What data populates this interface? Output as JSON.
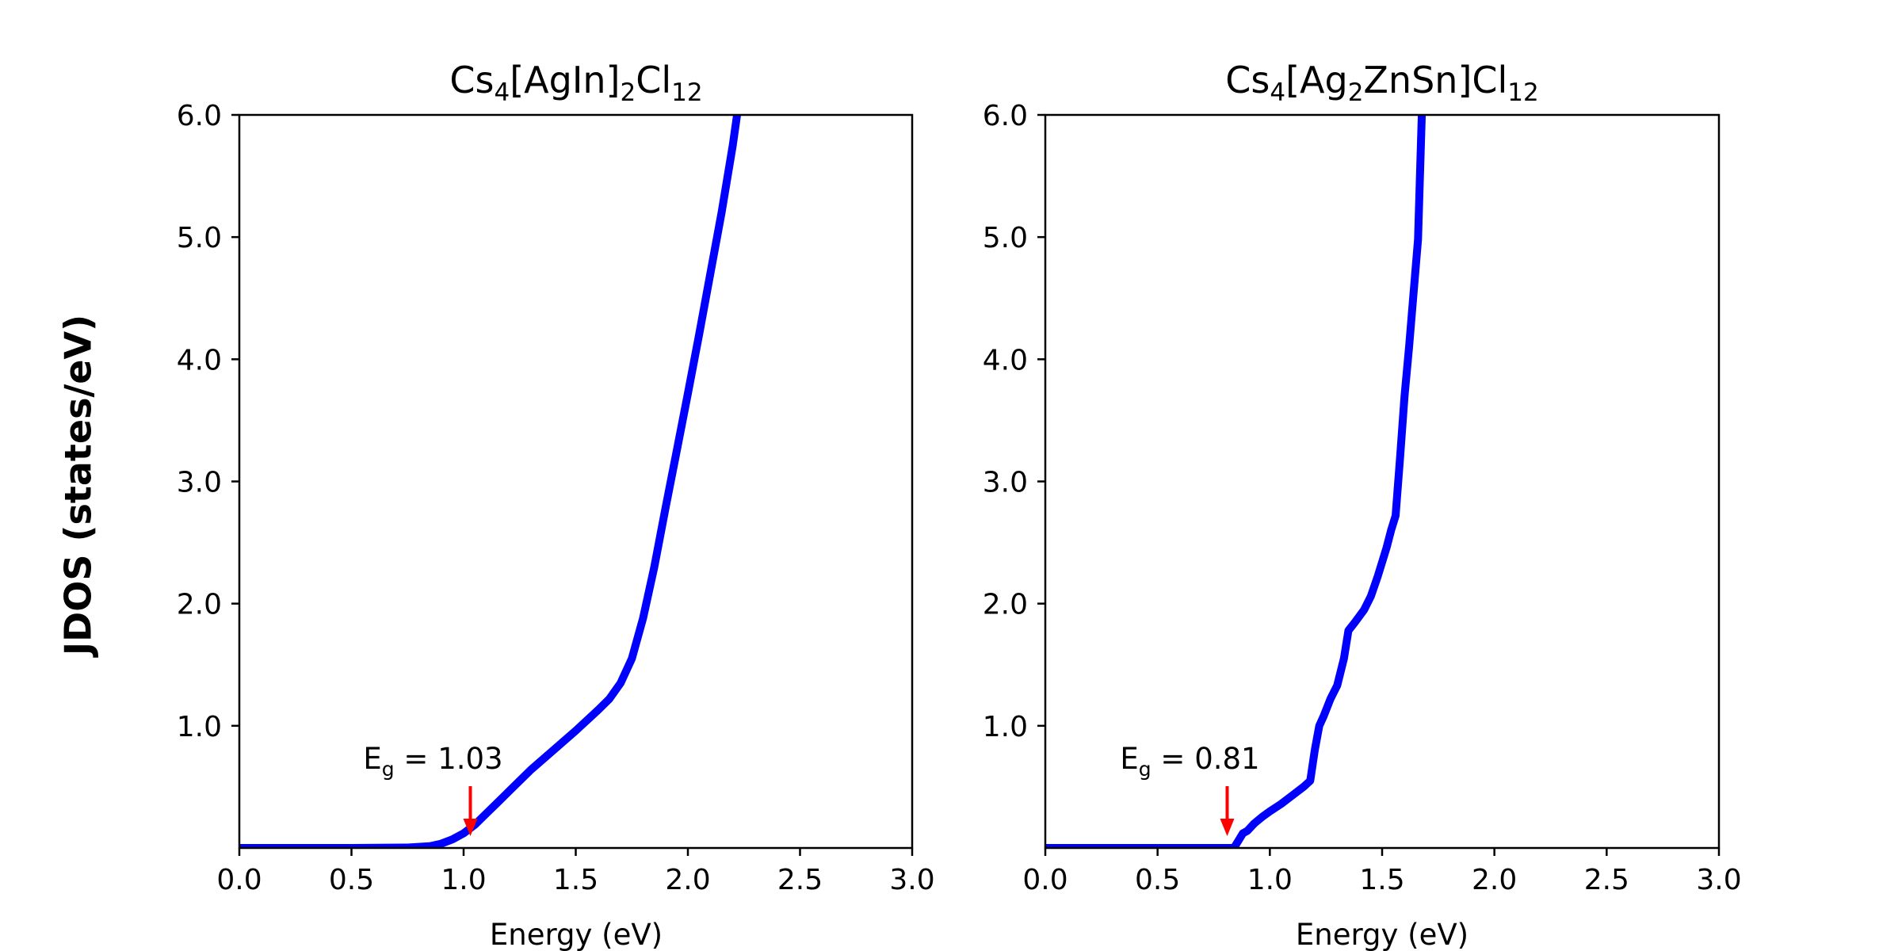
{
  "chart_data": [
    {
      "type": "line",
      "title": {
        "base": "Cs",
        "s1": "4",
        "mid": "[AgIn]",
        "s2": "2",
        "end": "Cl",
        "s3": "12"
      },
      "xlabel": "Energy (eV)",
      "ylabel": "JDOS (states/eV)",
      "xlim": [
        0.0,
        3.0
      ],
      "ylim": [
        0.0,
        6.0
      ],
      "xticks": [
        "0.0",
        "0.5",
        "1.0",
        "1.5",
        "2.0",
        "2.5",
        "3.0"
      ],
      "yticks": [
        "1.0",
        "2.0",
        "3.0",
        "4.0",
        "5.0",
        "6.0"
      ],
      "grid": false,
      "series_color": "#0000ff",
      "series": [
        {
          "x": [
            0.0,
            0.5,
            0.75,
            0.85,
            0.9,
            0.95,
            1.0,
            1.05,
            1.1,
            1.15,
            1.2,
            1.3,
            1.4,
            1.5,
            1.6,
            1.65,
            1.7,
            1.75,
            1.8,
            1.85,
            1.9,
            1.95,
            2.0,
            2.05,
            2.1,
            2.15,
            2.2,
            2.25,
            2.28
          ],
          "y": [
            0.0,
            0.0,
            0.003,
            0.015,
            0.035,
            0.07,
            0.12,
            0.19,
            0.28,
            0.37,
            0.46,
            0.64,
            0.8,
            0.96,
            1.13,
            1.22,
            1.35,
            1.55,
            1.88,
            2.3,
            2.78,
            3.25,
            3.72,
            4.2,
            4.7,
            5.2,
            5.75,
            6.4,
            6.9
          ]
        }
      ],
      "annotation": {
        "label": "E",
        "sub": "g",
        "value": "1.03",
        "x": 1.03,
        "arrow_color": "#ff0000"
      }
    },
    {
      "type": "line",
      "title": {
        "base": "Cs",
        "s1": "4",
        "mid": "[Ag",
        "s2": "2",
        "end": "ZnSn]Cl",
        "s3": "12"
      },
      "xlabel": "Energy (eV)",
      "ylabel": "",
      "xlim": [
        0.0,
        3.0
      ],
      "ylim": [
        0.0,
        6.0
      ],
      "xticks": [
        "0.0",
        "0.5",
        "1.0",
        "1.5",
        "2.0",
        "2.5",
        "3.0"
      ],
      "yticks": [
        "1.0",
        "2.0",
        "3.0",
        "4.0",
        "5.0",
        "6.0"
      ],
      "grid": false,
      "series_color": "#0000ff",
      "series": [
        {
          "x": [
            0.0,
            0.84,
            0.86,
            0.88,
            0.9,
            0.93,
            0.97,
            1.0,
            1.05,
            1.1,
            1.15,
            1.18,
            1.2,
            1.22,
            1.24,
            1.27,
            1.3,
            1.33,
            1.35,
            1.38,
            1.42,
            1.45,
            1.48,
            1.5,
            1.52,
            1.54,
            1.56,
            1.58,
            1.6,
            1.62,
            1.66,
            1.67,
            1.68
          ],
          "y": [
            0.0,
            0.0,
            0.06,
            0.12,
            0.14,
            0.2,
            0.26,
            0.3,
            0.36,
            0.43,
            0.5,
            0.55,
            0.8,
            1.0,
            1.08,
            1.22,
            1.33,
            1.55,
            1.78,
            1.85,
            1.95,
            2.06,
            2.22,
            2.34,
            2.46,
            2.6,
            2.72,
            3.2,
            3.7,
            4.1,
            4.98,
            5.6,
            6.2
          ]
        }
      ],
      "annotation": {
        "label": "E",
        "sub": "g",
        "value": "0.81",
        "x": 0.81,
        "arrow_color": "#ff0000"
      }
    }
  ]
}
